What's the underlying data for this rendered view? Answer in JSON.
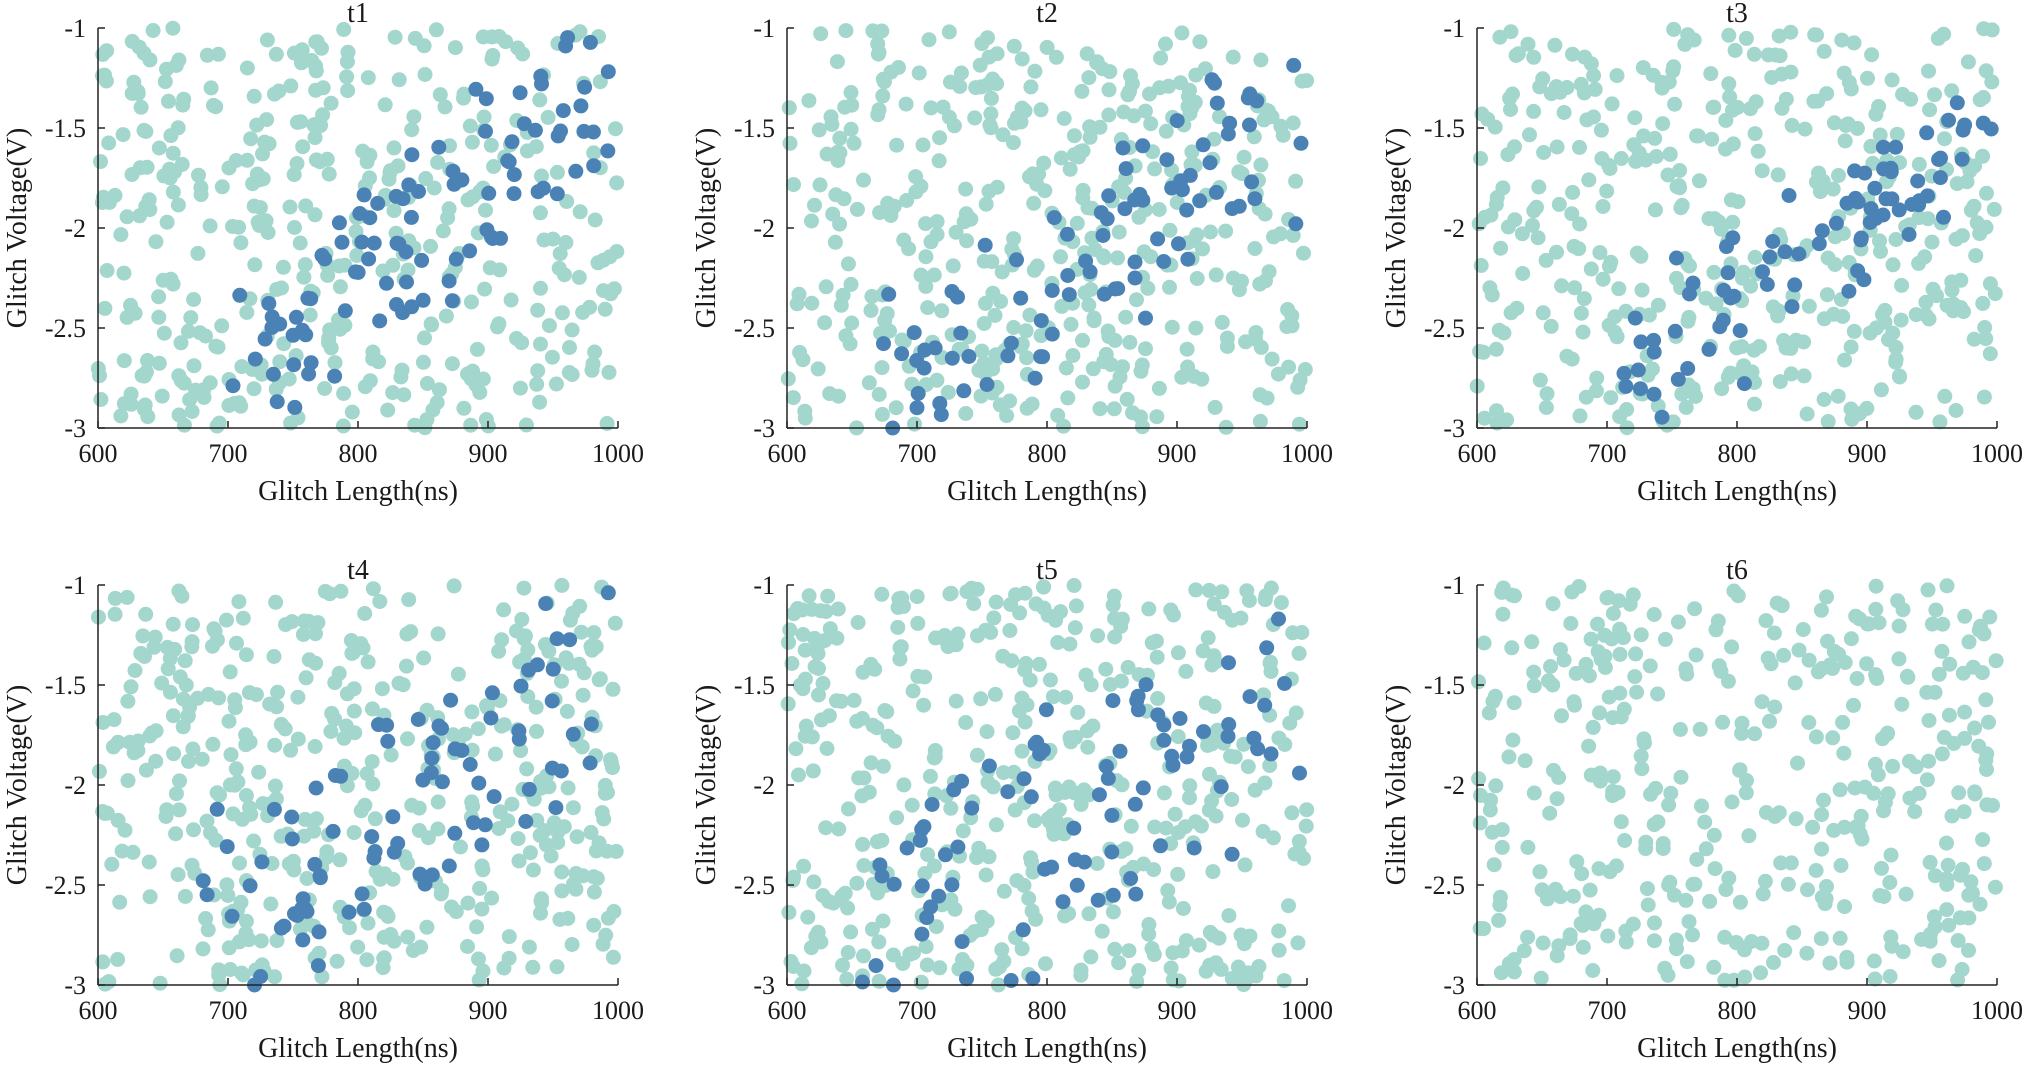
{
  "colors": {
    "non_fault": "#a3d6cc",
    "fault": "#4a82b5"
  },
  "chart_data": [
    {
      "type": "scatter",
      "title": "t1",
      "xlabel": "Glitch Length(ns)",
      "ylabel": "Glitch Voltage(V)",
      "xlim": [
        600,
        1000
      ],
      "ylim": [
        -3,
        -1
      ],
      "xticks": [
        600,
        700,
        800,
        900,
        1000
      ],
      "yticks": [
        -1,
        -1.5,
        -2,
        -2.5,
        -3
      ],
      "series": [
        {
          "name": "non-fault",
          "color": "#a3d6cc",
          "count": 420,
          "seed": 11,
          "fault_band": [
            0.9,
            1.45
          ]
        },
        {
          "name": "fault",
          "color": "#4a82b5",
          "count": 95,
          "seed": 12,
          "trend": [
            [
              720,
              -2.55
            ],
            [
              990,
              -1.35
            ]
          ],
          "spread": 0.42
        }
      ]
    },
    {
      "type": "scatter",
      "title": "t2",
      "xlabel": "Glitch Length(ns)",
      "ylabel": "Glitch Voltage(V)",
      "xlim": [
        600,
        1000
      ],
      "ylim": [
        -3,
        -1
      ],
      "xticks": [
        600,
        700,
        800,
        900,
        1000
      ],
      "yticks": [
        -1,
        -1.5,
        -2,
        -2.5,
        -3
      ],
      "series": [
        {
          "name": "non-fault",
          "color": "#a3d6cc",
          "count": 430,
          "seed": 21
        },
        {
          "name": "fault",
          "color": "#4a82b5",
          "count": 85,
          "seed": 22,
          "trend": [
            [
              700,
              -2.7
            ],
            [
              995,
              -1.45
            ]
          ],
          "spread": 0.45
        }
      ]
    },
    {
      "type": "scatter",
      "title": "t3",
      "xlabel": "Glitch Length(ns)",
      "ylabel": "Glitch Voltage(V)",
      "xlim": [
        600,
        1000
      ],
      "ylim": [
        -3,
        -1
      ],
      "xticks": [
        600,
        700,
        800,
        900,
        1000
      ],
      "yticks": [
        -1,
        -1.5,
        -2,
        -2.5,
        -3
      ],
      "series": [
        {
          "name": "non-fault",
          "color": "#a3d6cc",
          "count": 430,
          "seed": 31
        },
        {
          "name": "fault",
          "color": "#4a82b5",
          "count": 80,
          "seed": 32,
          "trend": [
            [
              720,
              -2.75
            ],
            [
              990,
              -1.45
            ]
          ],
          "spread": 0.3
        }
      ]
    },
    {
      "type": "scatter",
      "title": "t4",
      "xlabel": "Glitch Length(ns)",
      "ylabel": "Glitch Voltage(V)",
      "xlim": [
        600,
        1000
      ],
      "ylim": [
        -3,
        -1
      ],
      "xticks": [
        600,
        700,
        800,
        900,
        1000
      ],
      "yticks": [
        -1,
        -1.5,
        -2,
        -2.5,
        -3
      ],
      "series": [
        {
          "name": "non-fault",
          "color": "#a3d6cc",
          "count": 450,
          "seed": 41
        },
        {
          "name": "fault",
          "color": "#4a82b5",
          "count": 85,
          "seed": 42,
          "trend": [
            [
              700,
              -2.65
            ],
            [
              990,
              -1.45
            ]
          ],
          "spread": 0.5
        }
      ]
    },
    {
      "type": "scatter",
      "title": "t5",
      "xlabel": "Glitch Length(ns)",
      "ylabel": "Glitch Voltage(V)",
      "xlim": [
        600,
        1000
      ],
      "ylim": [
        -3,
        -1
      ],
      "xticks": [
        600,
        700,
        800,
        900,
        1000
      ],
      "yticks": [
        -1,
        -1.5,
        -2,
        -2.5,
        -3
      ],
      "series": [
        {
          "name": "non-fault",
          "color": "#a3d6cc",
          "count": 450,
          "seed": 51
        },
        {
          "name": "fault",
          "color": "#4a82b5",
          "count": 85,
          "seed": 52,
          "trend": [
            [
              680,
              -2.75
            ],
            [
              990,
              -1.5
            ]
          ],
          "spread": 0.55
        }
      ]
    },
    {
      "type": "scatter",
      "title": "t6",
      "xlabel": "Glitch Length(ns)",
      "ylabel": "Glitch Voltage(V)",
      "xlim": [
        600,
        1000
      ],
      "ylim": [
        -3,
        -1
      ],
      "xticks": [
        600,
        700,
        800,
        900,
        1000
      ],
      "yticks": [
        -1,
        -1.5,
        -2,
        -2.5,
        -3
      ],
      "series": [
        {
          "name": "non-fault",
          "color": "#a3d6cc",
          "count": 400,
          "seed": 61
        }
      ]
    }
  ]
}
